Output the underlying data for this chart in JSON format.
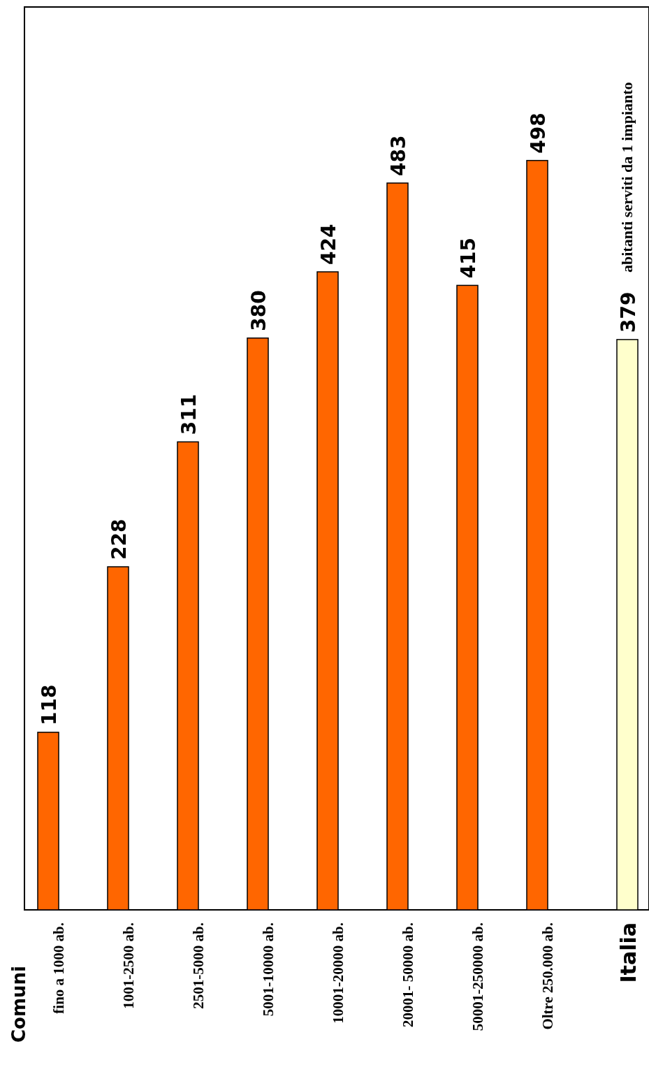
{
  "chart_data": {
    "type": "bar",
    "title": "abitanti serviti da 1 impianto",
    "annotations": [
      "Comuni"
    ],
    "categories": [
      "fino a 1000 ab.",
      "1001-2500 ab.",
      "2501-5000 ab.",
      "5001-10000 ab.",
      "10001-20000 ab.",
      "20001- 50000 ab.",
      "50001-250000 ab.",
      "Oltre 250.000 ab.",
      "Italia"
    ],
    "values": [
      118,
      228,
      311,
      380,
      424,
      483,
      415,
      498,
      379
    ],
    "colors": [
      "#ff6600",
      "#ff6600",
      "#ff6600",
      "#ff6600",
      "#ff6600",
      "#ff6600",
      "#ff6600",
      "#ff6600",
      "#ffffcc"
    ],
    "ylim": [
      0,
      600
    ],
    "data_labels": true
  }
}
